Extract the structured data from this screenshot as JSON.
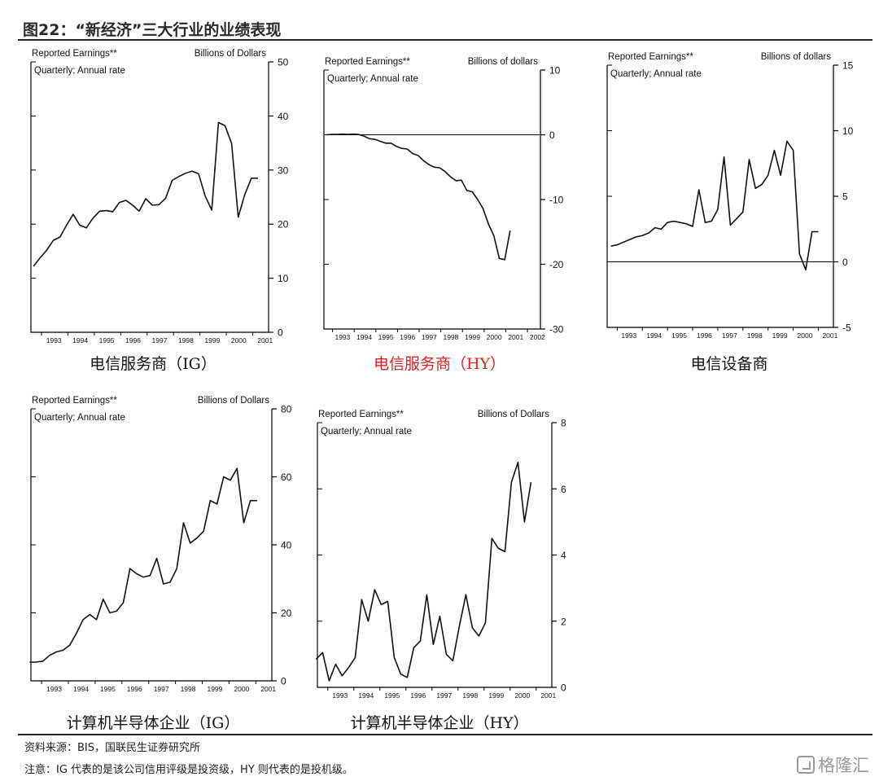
{
  "figure": {
    "title": "图22：“新经济”三大行业的业绩表现",
    "source": "资料来源：BIS，国联民生证券研究所",
    "note": "注意：IG 代表的是该公司信用评级是投资级，HY 则代表的是投机级。",
    "watermark": "格隆汇",
    "watermark_icon": "logo-icon"
  },
  "chart_data": [
    {
      "type": "line",
      "caption": "电信服务商（IG）",
      "caption_color": "#111111",
      "header_left": "Reported Earnings**",
      "header_right": "Billions of Dollars",
      "subheader": "Quarterly; Annual rate",
      "x_ticks": [
        "1993",
        "1994",
        "1995",
        "1996",
        "1997",
        "1998",
        "1999",
        "2000",
        "2001"
      ],
      "x_range": [
        1992.6,
        2001.6
      ],
      "ylim": [
        0,
        50
      ],
      "y_ticks": [
        0,
        10,
        20,
        30,
        40,
        50
      ],
      "zero_line": false,
      "x": [
        1992.7,
        1992.95,
        1993.2,
        1993.45,
        1993.7,
        1993.95,
        1994.2,
        1994.45,
        1994.7,
        1994.95,
        1995.2,
        1995.45,
        1995.7,
        1995.95,
        1996.2,
        1996.45,
        1996.7,
        1996.95,
        1997.2,
        1997.45,
        1997.7,
        1997.95,
        1998.2,
        1998.45,
        1998.7,
        1998.95,
        1999.2,
        1999.45,
        1999.7,
        1999.95,
        2000.2,
        2000.45,
        2000.7,
        2000.95,
        2001.2
      ],
      "values": [
        12.2,
        13.8,
        15.2,
        17.0,
        17.6,
        19.8,
        21.8,
        19.8,
        19.3,
        21.1,
        22.4,
        22.5,
        22.3,
        24.0,
        24.4,
        23.5,
        22.4,
        24.7,
        23.5,
        23.6,
        24.8,
        28.1,
        28.8,
        29.4,
        29.8,
        29.3,
        25.2,
        22.6,
        38.8,
        38.2,
        34.9,
        21.3,
        25.5,
        28.5,
        28.5
      ]
    },
    {
      "type": "line",
      "caption": "电信服务商（HY）",
      "caption_color": "#e02020",
      "header_left": "Reported Earnings**",
      "header_right": "Billions of dollars",
      "subheader": "Quarterly; Annual rate",
      "x_ticks": [
        "1993",
        "1994",
        "1995",
        "1996",
        "1997",
        "1998",
        "1999",
        "2000",
        "2001",
        "2002"
      ],
      "x_range": [
        1992.6,
        2002.6
      ],
      "ylim": [
        -30,
        10
      ],
      "y_ticks": [
        -30,
        -20,
        -10,
        0,
        10
      ],
      "zero_line": true,
      "x": [
        1992.7,
        1992.95,
        1993.2,
        1993.45,
        1993.7,
        1993.95,
        1994.2,
        1994.45,
        1994.7,
        1994.95,
        1995.2,
        1995.45,
        1995.7,
        1995.95,
        1996.2,
        1996.45,
        1996.7,
        1996.95,
        1997.2,
        1997.45,
        1997.7,
        1997.95,
        1998.2,
        1998.45,
        1998.7,
        1998.95,
        1999.2,
        1999.45,
        1999.7,
        1999.95,
        2000.2,
        2000.45,
        2000.7,
        2000.95,
        2001.2
      ],
      "values": [
        0.0,
        0.05,
        0.05,
        0.1,
        0.05,
        0.1,
        0.05,
        -0.2,
        -0.6,
        -0.7,
        -1.0,
        -1.3,
        -1.3,
        -1.8,
        -2.1,
        -2.2,
        -2.9,
        -3.2,
        -4.0,
        -4.6,
        -5.0,
        -5.1,
        -5.7,
        -6.5,
        -7.1,
        -7.0,
        -8.6,
        -8.8,
        -10.0,
        -11.4,
        -13.8,
        -15.6,
        -19.1,
        -19.3,
        -14.8
      ]
    },
    {
      "type": "line",
      "caption": "电信设备商",
      "caption_color": "#111111",
      "header_left": "Reported Earnings**",
      "header_right": "Billions of dollars",
      "subheader": "Quarterly; Annual rate",
      "x_ticks": [
        "1993",
        "1994",
        "1995",
        "1996",
        "1997",
        "1998",
        "1999",
        "2000",
        "2001"
      ],
      "x_range": [
        1992.6,
        2001.6
      ],
      "ylim": [
        -5,
        15
      ],
      "y_ticks": [
        -5,
        0,
        5,
        10,
        15
      ],
      "zero_line": true,
      "x": [
        1992.75,
        1993.0,
        1993.25,
        1993.5,
        1993.75,
        1994.0,
        1994.25,
        1994.5,
        1994.75,
        1995.0,
        1995.25,
        1995.5,
        1995.75,
        1996.0,
        1996.25,
        1996.5,
        1996.75,
        1997.0,
        1997.25,
        1997.5,
        1997.75,
        1998.0,
        1998.25,
        1998.5,
        1998.75,
        1999.0,
        1999.25,
        1999.5,
        1999.75,
        2000.0,
        2000.25,
        2000.5,
        2000.75,
        2001.0
      ],
      "values": [
        1.2,
        1.3,
        1.5,
        1.7,
        1.9,
        2.0,
        2.2,
        2.6,
        2.5,
        3.0,
        3.1,
        3.0,
        2.9,
        2.7,
        5.5,
        3.0,
        3.1,
        4.0,
        8.0,
        2.8,
        3.3,
        3.8,
        7.8,
        5.6,
        5.9,
        6.6,
        8.5,
        6.6,
        9.2,
        8.5,
        0.6,
        -0.6,
        2.3,
        2.3
      ]
    },
    {
      "type": "line",
      "caption": "计算机半导体企业（IG）",
      "caption_color": "#111111",
      "header_left": "Reported Earnings**",
      "header_right": "Billions of Dollars",
      "subheader": "Quarterly; Annual rate",
      "x_ticks": [
        "1993",
        "1994",
        "1995",
        "1996",
        "1997",
        "1998",
        "1999",
        "2000",
        "2001"
      ],
      "x_range": [
        1992.6,
        2001.6
      ],
      "ylim": [
        0,
        80
      ],
      "y_ticks": [
        0,
        20,
        40,
        60,
        80
      ],
      "zero_line": false,
      "x": [
        1992.55,
        1992.8,
        1993.05,
        1993.3,
        1993.55,
        1993.8,
        1994.05,
        1994.3,
        1994.55,
        1994.8,
        1995.05,
        1995.3,
        1995.55,
        1995.8,
        1996.05,
        1996.3,
        1996.55,
        1996.8,
        1997.05,
        1997.3,
        1997.55,
        1997.8,
        1998.05,
        1998.3,
        1998.55,
        1998.8,
        1999.05,
        1999.3,
        1999.55,
        1999.8,
        2000.05,
        2000.3,
        2000.55,
        2000.8,
        2001.05
      ],
      "values": [
        5.5,
        5.5,
        5.8,
        7.5,
        8.5,
        9.0,
        10.5,
        14.0,
        18.0,
        19.5,
        18.0,
        24.0,
        20.0,
        20.5,
        23.0,
        33.0,
        31.5,
        30.5,
        31.0,
        36.0,
        28.5,
        29.0,
        33.0,
        46.5,
        40.5,
        42.0,
        44.0,
        53.0,
        52.0,
        60.0,
        59.0,
        62.5,
        46.5,
        53.0,
        53.0
      ]
    },
    {
      "type": "line",
      "caption": "计算机半导体企业（HY）",
      "caption_color": "#111111",
      "header_left": "Reported Earnings**",
      "header_right": "Billions of Dollars",
      "subheader": "Quarterly; Annual rate",
      "x_ticks": [
        "1993",
        "1994",
        "1995",
        "1996",
        "1997",
        "1998",
        "1999",
        "2000",
        "2001"
      ],
      "x_range": [
        1992.6,
        2001.6
      ],
      "ylim": [
        0,
        8
      ],
      "y_ticks": [
        0,
        2,
        4,
        6,
        8
      ],
      "zero_line": false,
      "x": [
        1992.55,
        1992.8,
        1993.05,
        1993.3,
        1993.55,
        1993.8,
        1994.05,
        1994.3,
        1994.55,
        1994.8,
        1995.05,
        1995.3,
        1995.55,
        1995.8,
        1996.05,
        1996.3,
        1996.55,
        1996.8,
        1997.05,
        1997.3,
        1997.55,
        1997.8,
        1998.05,
        1998.3,
        1998.55,
        1998.8,
        1999.05,
        1999.3,
        1999.55,
        1999.8,
        2000.05,
        2000.3,
        2000.55,
        2000.8
      ],
      "values": [
        0.85,
        1.05,
        0.2,
        0.7,
        0.35,
        0.6,
        0.9,
        2.65,
        2.0,
        2.95,
        2.5,
        2.6,
        0.9,
        0.4,
        0.3,
        1.2,
        1.4,
        2.8,
        1.3,
        2.15,
        1.0,
        0.8,
        1.85,
        2.8,
        1.8,
        1.55,
        1.95,
        4.5,
        4.2,
        4.1,
        6.2,
        6.8,
        5.0,
        6.2
      ]
    }
  ]
}
